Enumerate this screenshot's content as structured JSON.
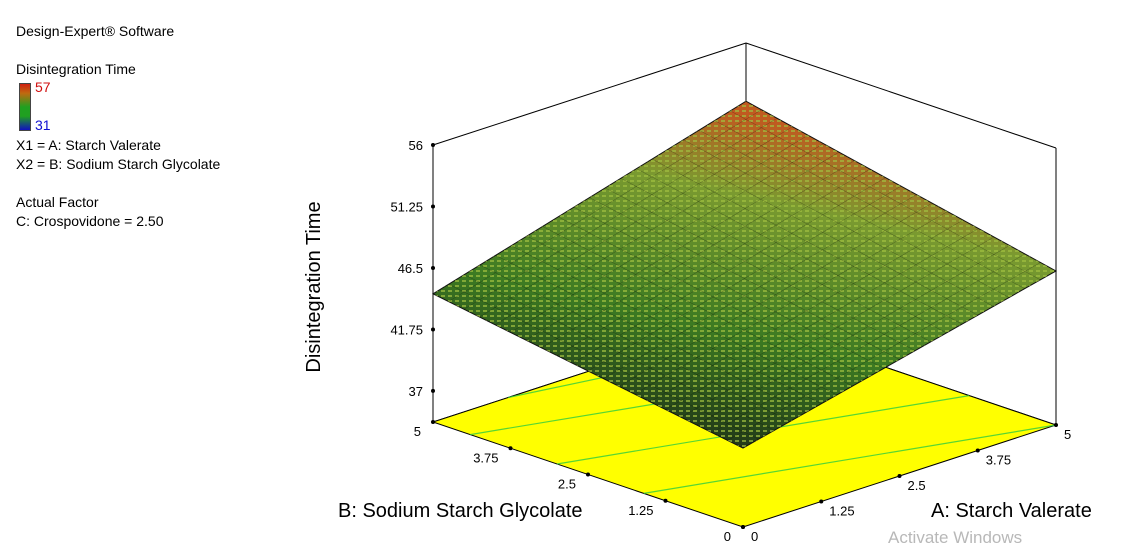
{
  "software": "Design-Expert® Software",
  "response": {
    "name": "Disintegration Time",
    "max_label": "57",
    "min_label": "31"
  },
  "factors": {
    "x1": "X1 = A: Starch Valerate",
    "x2": "X2 = B: Sodium Starch Glycolate"
  },
  "actual_factor": {
    "heading": "Actual Factor",
    "value": "C: Crospovidone = 2.50"
  },
  "watermark": "Activate Windows",
  "colors": {
    "surface_high": "#c05a20",
    "surface_mid": "#5aa030",
    "surface_low": "#1a1a1a",
    "floor": "#ffff00",
    "contour": "#2ecc40"
  },
  "chart_data": {
    "type": "surface3d",
    "zlabel": "Disintegration Time",
    "xlabel": "A: Starch Valerate",
    "ylabel": "B: Sodium Starch Glycolate",
    "x_ticks": [
      "0",
      "1.25",
      "2.5",
      "3.75",
      "5"
    ],
    "y_ticks": [
      "0",
      "1.25",
      "2.5",
      "3.75",
      "5"
    ],
    "z_ticks": [
      "37",
      "41.75",
      "46.5",
      "51.25",
      "56"
    ],
    "xlim": [
      0,
      5
    ],
    "ylim": [
      0,
      5
    ],
    "zlim": [
      34.6,
      56
    ],
    "surface_corners": {
      "A0_B0": 40.7,
      "A5_B0": 46.5,
      "A0_B5": 44.5,
      "A5_B5": 51.5
    }
  }
}
